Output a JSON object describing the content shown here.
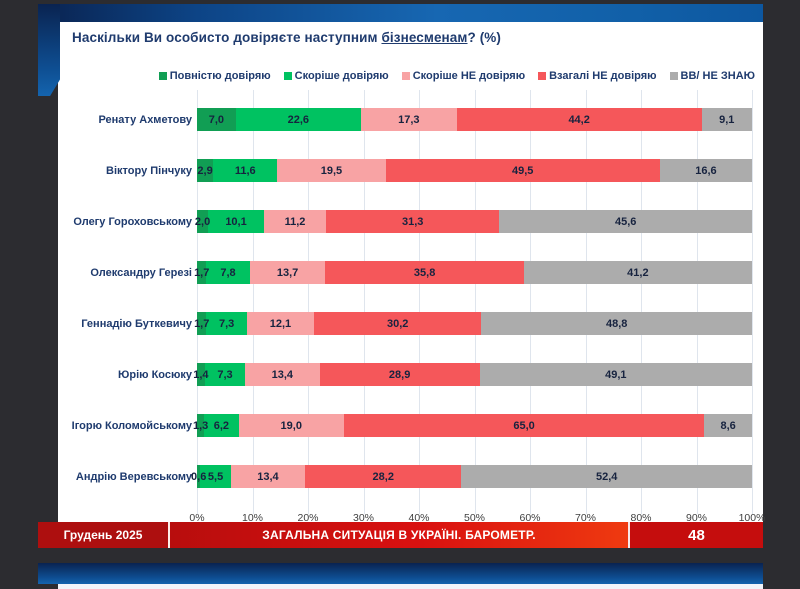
{
  "slide": {
    "title_prefix": "Наскільки Ви особисто довіряєте наступним ",
    "title_underline": "бізнесменам",
    "title_suffix": "? (%)"
  },
  "chart_data": {
    "type": "bar",
    "orientation": "horizontal",
    "stacked": true,
    "grid": true,
    "legend_position": "top",
    "xlim": [
      0,
      100
    ],
    "x_ticks": [
      "0%",
      "10%",
      "20%",
      "30%",
      "40%",
      "50%",
      "60%",
      "70%",
      "80%",
      "90%",
      "100%"
    ],
    "categories": [
      "Ренату Ахметову",
      "Віктору Пінчуку",
      "Олегу Гороховському",
      "Олександру Герезі",
      "Геннадію Буткевичу",
      "Юрію Косюку",
      "Ігорю Коломойському",
      "Андрію Веревському"
    ],
    "series": [
      {
        "name": "Повністю довіряю",
        "color": "#119e54",
        "values": [
          7.0,
          2.9,
          2.0,
          1.7,
          1.7,
          1.4,
          1.3,
          0.6
        ]
      },
      {
        "name": "Скоріше довіряю",
        "color": "#00c261",
        "values": [
          22.6,
          11.6,
          10.1,
          7.8,
          7.3,
          7.3,
          6.2,
          5.5
        ]
      },
      {
        "name": "Скоріше НЕ довіряю",
        "color": "#f8a3a4",
        "values": [
          17.3,
          19.5,
          11.2,
          13.7,
          12.1,
          13.4,
          19.0,
          13.4
        ]
      },
      {
        "name": "Взагалі НЕ  довіряю",
        "color": "#f5575a",
        "values": [
          44.2,
          49.5,
          31.3,
          35.8,
          30.2,
          28.9,
          65.0,
          28.2
        ]
      },
      {
        "name": "ВВ/ НЕ ЗНАЮ",
        "color": "#acacac",
        "values": [
          9.1,
          16.6,
          45.6,
          41.2,
          48.8,
          49.1,
          8.6,
          52.4
        ]
      }
    ]
  },
  "footer": {
    "date": "Грудень 2025",
    "title": "ЗАГАЛЬНА СИТУАЦІЯ В УКРАЇНІ. БАРОМЕТР.",
    "page": "48"
  },
  "colors": {
    "page_background": "#2c2c30",
    "accent_blue_dark": "#0a2350",
    "accent_blue": "#1767b2",
    "footer_red": "#c50d0d",
    "title_text": "#1f3b6e"
  }
}
